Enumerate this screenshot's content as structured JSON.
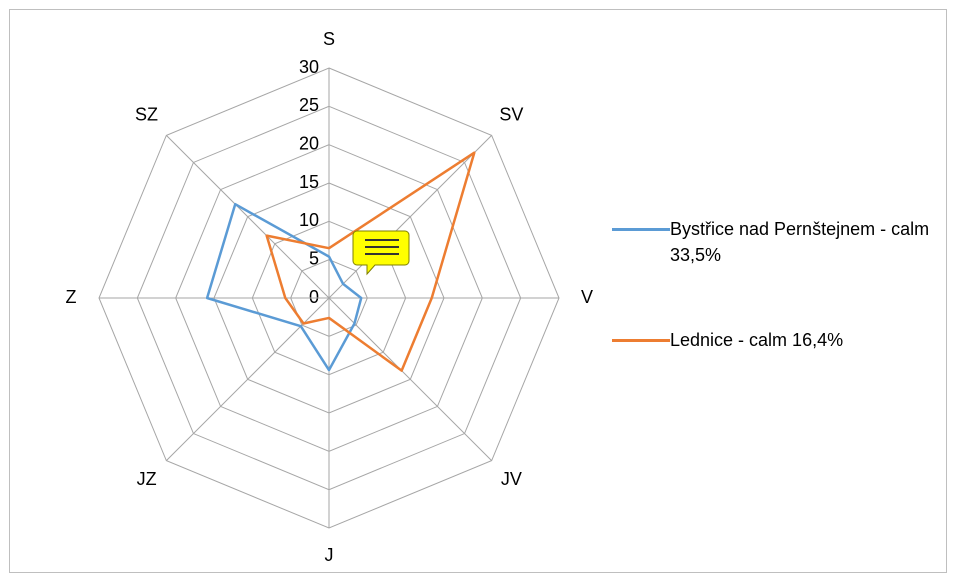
{
  "chart_data": {
    "type": "radar",
    "categories": [
      "S",
      "SV",
      "V",
      "JV",
      "J",
      "JZ",
      "Z",
      "SZ"
    ],
    "ylim": [
      0,
      30
    ],
    "yticks": [
      0,
      5,
      10,
      15,
      20,
      25,
      30
    ],
    "grid": true,
    "legend": "right",
    "series": [
      {
        "name": "Bystřice nad Pernštejnem - calm 33,5%",
        "color": "#5b9bd5",
        "values": [
          5.4,
          2.6,
          4.2,
          4.7,
          9.4,
          5.2,
          15.9,
          17.3
        ]
      },
      {
        "name": "Lednice - calm 16,4%",
        "color": "#ed7d31",
        "values": [
          6.5,
          26.8,
          13.4,
          13.4,
          2.6,
          4.7,
          5.7,
          11.5
        ]
      }
    ]
  }
}
